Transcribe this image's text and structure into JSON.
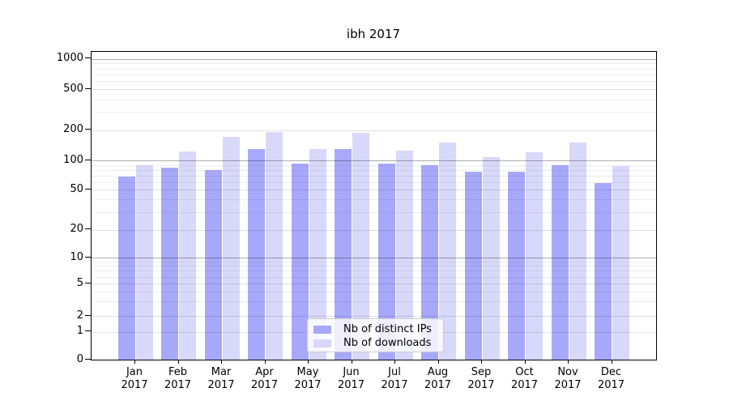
{
  "chart_data": {
    "type": "bar",
    "title": "ibh 2017",
    "y_scale": "symlog",
    "grid": true,
    "legend_position": "lower center",
    "categories": [
      "Jan",
      "Feb",
      "Mar",
      "Apr",
      "May",
      "Jun",
      "Jul",
      "Aug",
      "Sep",
      "Oct",
      "Nov",
      "Dec"
    ],
    "year_label": "2017",
    "y_ticks": [
      "0",
      "1",
      "2",
      "5",
      "10",
      "20",
      "50",
      "100",
      "200",
      "500",
      "1000"
    ],
    "ylim": [
      0,
      1200
    ],
    "series": [
      {
        "name": "Nb of distinct IPs",
        "color": "#a8a8fa",
        "values": [
          68,
          85,
          80,
          130,
          93,
          129,
          92,
          89,
          76,
          76,
          89,
          59
        ]
      },
      {
        "name": "Nb of downloads",
        "color": "#d8d8fa",
        "values": [
          89,
          122,
          171,
          193,
          130,
          188,
          126,
          151,
          108,
          121,
          150,
          87
        ]
      }
    ]
  }
}
